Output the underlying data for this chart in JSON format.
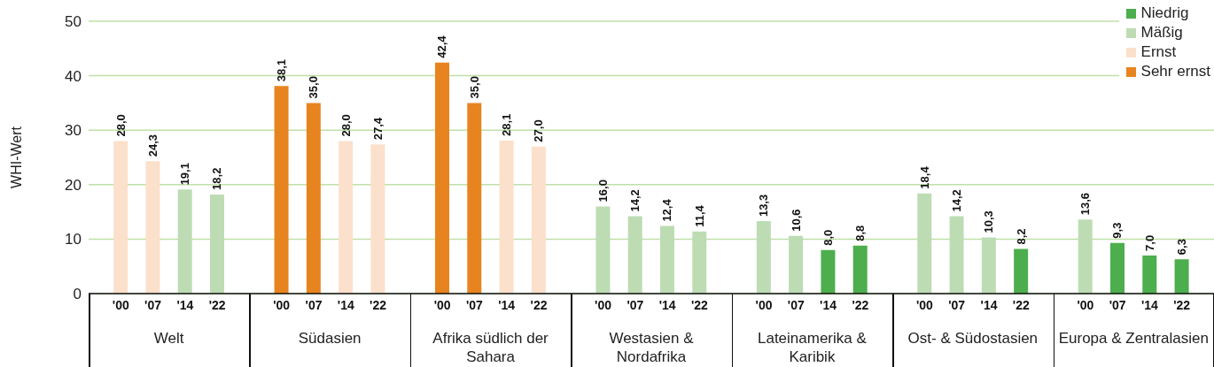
{
  "chart_data": {
    "type": "bar",
    "stacked": true,
    "ylabel": "WHI-Wert",
    "ylim": [
      0,
      50
    ],
    "yticks": [
      0,
      10,
      20,
      30,
      40,
      50
    ],
    "grid": "y",
    "legend": "top right",
    "categories": [
      "'00",
      "'07",
      "'14",
      "'22",
      "'00",
      "'07",
      "'14",
      "'22",
      "'00",
      "'07",
      "'14",
      "'22",
      "'00",
      "'07",
      "'14",
      "'22",
      "'00",
      "'07",
      "'14",
      "'22",
      "'00",
      "'07",
      "'14",
      "'22",
      "'00",
      "'07",
      "'14",
      "'22"
    ],
    "annotations": [
      "Welt",
      "Südasien",
      "Afrika südlich der Sahara",
      "Westasien & Nordafrika",
      "Lateinamerika & Karibik",
      "Ost- & Südostasien",
      "Europa & Zentralasien"
    ],
    "series": [
      {
        "name": "Niedrig",
        "color": "#4cae4c",
        "values": [
          null,
          null,
          null,
          null,
          null,
          null,
          null,
          null,
          null,
          null,
          null,
          null,
          null,
          null,
          null,
          null,
          null,
          null,
          8.0,
          8.8,
          null,
          null,
          null,
          8.2,
          null,
          9.3,
          7.0,
          6.3
        ],
        "value_labels": [
          null,
          null,
          null,
          null,
          null,
          null,
          null,
          null,
          null,
          null,
          null,
          null,
          null,
          null,
          null,
          null,
          null,
          null,
          "8,0",
          "8,8",
          null,
          null,
          null,
          "8,2",
          null,
          "9,3",
          "7,0",
          "6,3"
        ]
      },
      {
        "name": "Mäßig",
        "color": "#bddcb4",
        "values": [
          null,
          null,
          19.1,
          18.2,
          null,
          null,
          null,
          null,
          null,
          null,
          null,
          null,
          16.0,
          14.2,
          12.4,
          11.4,
          13.3,
          10.6,
          null,
          null,
          18.4,
          14.2,
          10.3,
          null,
          13.6,
          null,
          null,
          null
        ],
        "value_labels": [
          null,
          null,
          "19,1",
          "18,2",
          null,
          null,
          null,
          null,
          null,
          null,
          null,
          null,
          "16,0",
          "14,2",
          "12,4",
          "11,4",
          "13,3",
          "10,6",
          null,
          null,
          "18,4",
          "14,2",
          "10,3",
          null,
          "13,6",
          null,
          null,
          null
        ]
      },
      {
        "name": "Ernst",
        "color": "#fbe0cb",
        "values": [
          28.0,
          24.3,
          null,
          null,
          null,
          null,
          28.0,
          27.4,
          null,
          null,
          28.1,
          27.0,
          null,
          null,
          null,
          null,
          null,
          null,
          null,
          null,
          null,
          null,
          null,
          null,
          null,
          null,
          null,
          null
        ],
        "value_labels": [
          "28,0",
          "24,3",
          null,
          null,
          null,
          null,
          "28,0",
          "27,4",
          null,
          null,
          "28,1",
          "27,0",
          null,
          null,
          null,
          null,
          null,
          null,
          null,
          null,
          null,
          null,
          null,
          null,
          null,
          null,
          null,
          null
        ]
      },
      {
        "name": "Sehr ernst",
        "color": "#e8841f",
        "values": [
          null,
          null,
          null,
          null,
          38.1,
          35.0,
          null,
          null,
          42.4,
          35.0,
          null,
          null,
          null,
          null,
          null,
          null,
          null,
          null,
          null,
          null,
          null,
          null,
          null,
          null,
          null,
          null,
          null,
          null
        ],
        "value_labels": [
          null,
          null,
          null,
          null,
          "38,1",
          "35,0",
          null,
          null,
          "42,4",
          "35,0",
          null,
          null,
          null,
          null,
          null,
          null,
          null,
          null,
          null,
          null,
          null,
          null,
          null,
          null,
          null,
          null,
          null,
          null
        ]
      }
    ]
  }
}
